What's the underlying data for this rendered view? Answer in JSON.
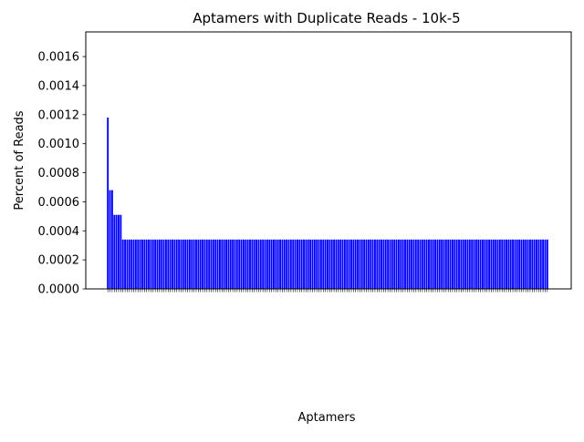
{
  "chart_data": {
    "type": "bar",
    "title": "Aptamers with Duplicate Reads - 10k-5",
    "xlabel": "Aptamers",
    "ylabel": "Percent of Reads",
    "ylim": [
      0,
      0.00177
    ],
    "yticks": [
      "0.0000",
      "0.0002",
      "0.0004",
      "0.0006",
      "0.0008",
      "0.0010",
      "0.0012",
      "0.0014",
      "0.0016"
    ],
    "bar_color": "#0000ff",
    "grid": false,
    "legend": "none",
    "num_bars": 205,
    "values_head": [
      0.00118,
      0.00068,
      0.00068,
      0.00051,
      0.00051,
      0.00051,
      0.00051
    ],
    "value_rest": 0.00034,
    "xtick_label_note": "aptamer sequence labels are rotated and too small to read"
  }
}
